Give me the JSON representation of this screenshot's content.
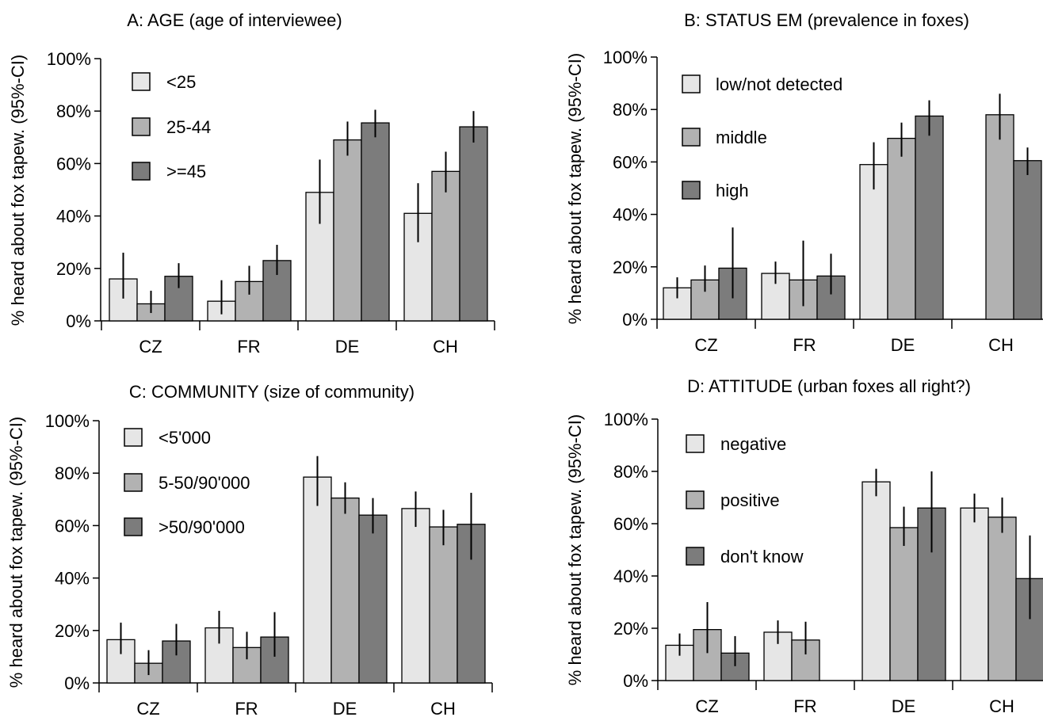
{
  "colors": {
    "series": [
      "#e6e6e6",
      "#b2b2b2",
      "#7c7c7c"
    ],
    "stroke": "#000000"
  },
  "chart_data": [
    {
      "type": "bar",
      "title": "A: AGE (age of interviewee)",
      "ylabel": "% heard about fox tapew. (95%-CI)",
      "xlabel": "",
      "categories": [
        "CZ",
        "FR",
        "DE",
        "CH"
      ],
      "ylim": [
        0,
        100
      ],
      "yticks": [
        "0%",
        "20%",
        "40%",
        "60%",
        "80%",
        "100%"
      ],
      "legend_position": "top-left",
      "series": [
        {
          "name": "<25",
          "values": [
            16,
            7.5,
            49,
            41
          ],
          "ci_low": [
            8.5,
            2.5,
            37,
            30
          ],
          "ci_high": [
            26,
            15.5,
            61.5,
            52.5
          ]
        },
        {
          "name": "25-44",
          "values": [
            6.5,
            15,
            69,
            57
          ],
          "ci_low": [
            3,
            10,
            63,
            49
          ],
          "ci_high": [
            11.5,
            21,
            76,
            64.5
          ]
        },
        {
          "name": ">=45",
          "values": [
            17,
            23,
            75.5,
            74
          ],
          "ci_low": [
            12.5,
            17.5,
            70,
            68
          ],
          "ci_high": [
            22,
            29,
            80.5,
            80
          ]
        }
      ]
    },
    {
      "type": "bar",
      "title": "B: STATUS EM (prevalence in foxes)",
      "ylabel": "% heard about fox tapew. (95%-CI)",
      "xlabel": "",
      "categories": [
        "CZ",
        "FR",
        "DE",
        "CH"
      ],
      "ylim": [
        0,
        100
      ],
      "yticks": [
        "0%",
        "20%",
        "40%",
        "60%",
        "80%",
        "100%"
      ],
      "legend_position": "top-left",
      "series": [
        {
          "name": "low/not detected",
          "values": [
            12,
            17.5,
            59,
            null
          ],
          "ci_low": [
            8,
            13.5,
            49.5,
            null
          ],
          "ci_high": [
            16,
            22,
            67.5,
            null
          ]
        },
        {
          "name": "middle",
          "values": [
            15,
            15,
            69,
            78
          ],
          "ci_low": [
            10.5,
            5,
            62,
            68.5
          ],
          "ci_high": [
            20.5,
            30,
            75,
            86
          ]
        },
        {
          "name": "high",
          "values": [
            19.5,
            16.5,
            77.5,
            60.5
          ],
          "ci_low": [
            8,
            9.5,
            70,
            55
          ],
          "ci_high": [
            35,
            25,
            83.5,
            65.5
          ]
        }
      ]
    },
    {
      "type": "bar",
      "title": "C: COMMUNITY (size of community)",
      "ylabel": "% heard about fox tapew. (95%-CI)",
      "xlabel": "",
      "categories": [
        "CZ",
        "FR",
        "DE",
        "CH"
      ],
      "ylim": [
        0,
        100
      ],
      "yticks": [
        "0%",
        "20%",
        "40%",
        "60%",
        "80%",
        "100%"
      ],
      "legend_position": "top-left",
      "series": [
        {
          "name": "<5'000",
          "values": [
            16.5,
            21,
            78.5,
            66.5
          ],
          "ci_low": [
            11,
            15,
            67.5,
            59.5
          ],
          "ci_high": [
            23,
            27.5,
            86.5,
            73
          ]
        },
        {
          "name": "5-50/90'000",
          "values": [
            7.5,
            13.5,
            70.5,
            59.5
          ],
          "ci_low": [
            3,
            9,
            64.5,
            52.5
          ],
          "ci_high": [
            12.5,
            19.5,
            76.5,
            66
          ]
        },
        {
          "name": ">50/90'000",
          "values": [
            16,
            17.5,
            64,
            60.5
          ],
          "ci_low": [
            10.5,
            10,
            57,
            47
          ],
          "ci_high": [
            22.5,
            27,
            70.5,
            72.5
          ]
        }
      ]
    },
    {
      "type": "bar",
      "title": "D: ATTITUDE (urban foxes all right?)",
      "ylabel": "% heard about fox tapew. (95%-CI)",
      "xlabel": "",
      "categories": [
        "CZ",
        "FR",
        "DE",
        "CH"
      ],
      "ylim": [
        0,
        100
      ],
      "yticks": [
        "0%",
        "20%",
        "40%",
        "60%",
        "80%",
        "100%"
      ],
      "legend_position": "top-left",
      "series": [
        {
          "name": "negative",
          "values": [
            13.5,
            18.5,
            76,
            66
          ],
          "ci_low": [
            9.5,
            14,
            70.5,
            60.5
          ],
          "ci_high": [
            18,
            23,
            81,
            71.5
          ]
        },
        {
          "name": "positive",
          "values": [
            19.5,
            15.5,
            58.5,
            62.5
          ],
          "ci_low": [
            10.5,
            10,
            51.5,
            56.5
          ],
          "ci_high": [
            30,
            22.5,
            66.5,
            70
          ]
        },
        {
          "name": "don't know",
          "values": [
            10.5,
            null,
            66,
            39
          ],
          "ci_low": [
            5.5,
            null,
            49,
            23.5
          ],
          "ci_high": [
            17,
            null,
            80,
            55.5
          ]
        }
      ]
    }
  ]
}
